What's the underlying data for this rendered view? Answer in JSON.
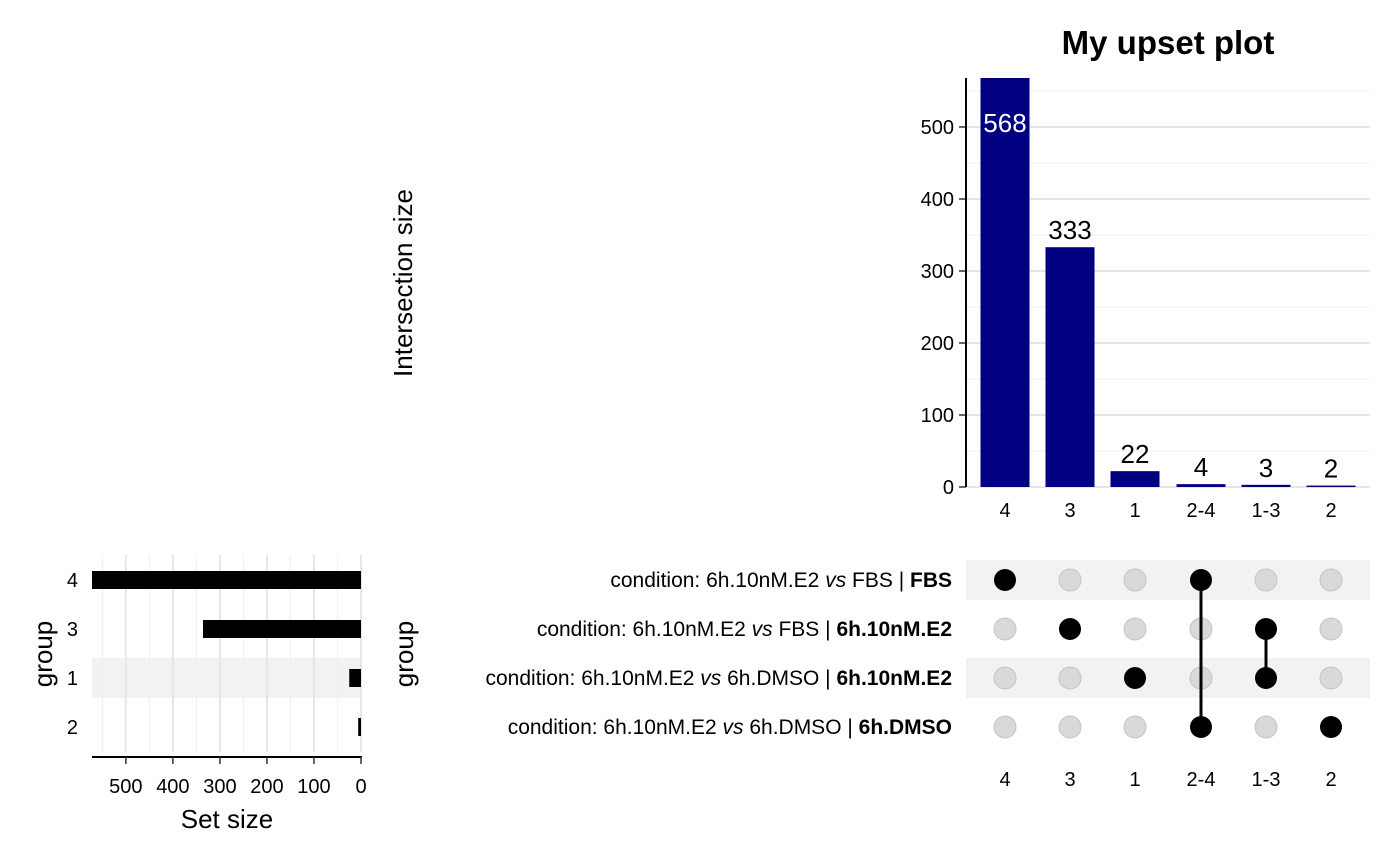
{
  "chart_data": {
    "type": "bar",
    "title": "My upset plot",
    "intersections": {
      "categories": [
        "4",
        "3",
        "1",
        "2-4",
        "1-3",
        "2"
      ],
      "values": [
        568,
        333,
        22,
        4,
        3,
        2
      ],
      "ylabel": "Intersection size",
      "ylim": [
        0,
        568
      ],
      "yticks": [
        0,
        100,
        200,
        300,
        400,
        500
      ],
      "bar_color": "#000080",
      "labels": [
        {
          "text": "568",
          "inside": true
        },
        {
          "text": "333",
          "inside": false
        },
        {
          "text": "22",
          "inside": false
        },
        {
          "text": "4",
          "inside": false
        },
        {
          "text": "3",
          "inside": false
        },
        {
          "text": "2",
          "inside": false
        }
      ],
      "grid": true
    },
    "sets": {
      "ids": [
        "4",
        "3",
        "1",
        "2"
      ],
      "names": [
        {
          "prefix": "condition: 6h.10nM.E2 ",
          "vs": "vs",
          "mid": " FBS | ",
          "bold": "FBS"
        },
        {
          "prefix": "condition: 6h.10nM.E2 ",
          "vs": "vs",
          "mid": " FBS | ",
          "bold": "6h.10nM.E2"
        },
        {
          "prefix": "condition: 6h.10nM.E2 ",
          "vs": "vs",
          "mid": " 6h.DMSO | ",
          "bold": "6h.10nM.E2"
        },
        {
          "prefix": "condition: 6h.10nM.E2 ",
          "vs": "vs",
          "mid": " 6h.DMSO | ",
          "bold": "6h.DMSO"
        }
      ],
      "sizes": [
        572,
        336,
        25,
        6
      ],
      "xlabel": "Set size",
      "ylabel": "group",
      "xticks": [
        500,
        400,
        300,
        200,
        100,
        0
      ],
      "xlim": [
        0,
        572
      ],
      "bar_color": "#000000"
    },
    "matrix": {
      "ylabel": "group",
      "membership": [
        [
          0
        ],
        [
          1
        ],
        [
          2
        ],
        [
          0,
          3
        ],
        [
          1,
          2
        ],
        [
          3
        ]
      ],
      "active_color": "#000000",
      "inactive_color": "#d9d9d9",
      "stripe_color": "#f2f2f2"
    }
  }
}
